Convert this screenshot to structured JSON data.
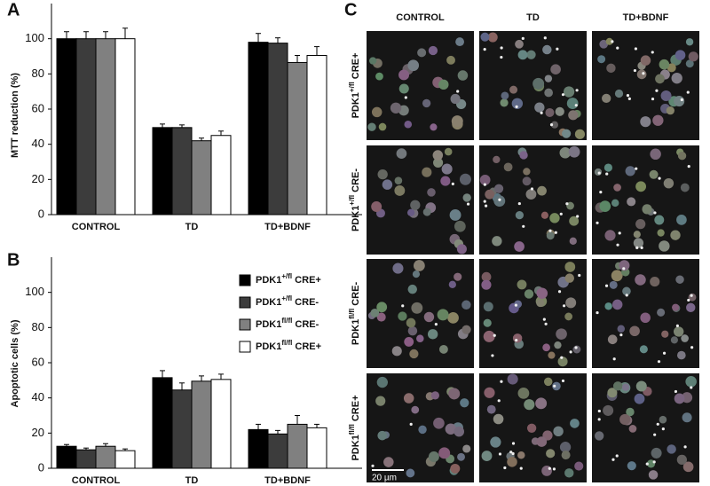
{
  "panel_labels": [
    "A",
    "B",
    "C"
  ],
  "chart_data": [
    {
      "type": "bar",
      "y_label": "MTT reduction (%)",
      "categories": [
        "CONTROL",
        "TD",
        "TD+BDNF"
      ],
      "series": [
        {
          "name": "PDK1+/fl CRE+",
          "color": "#000000",
          "values": [
            100,
            49.5,
            98
          ],
          "errors": [
            4,
            2,
            5
          ]
        },
        {
          "name": "PDK1+/fl CRE-",
          "color": "#3c3c3c",
          "values": [
            100,
            49.5,
            97.5
          ],
          "errors": [
            4,
            1.5,
            3
          ]
        },
        {
          "name": "PDK1fl/fl CRE-",
          "color": "#808080",
          "values": [
            100,
            42,
            86.5
          ],
          "errors": [
            4,
            1.5,
            4
          ]
        },
        {
          "name": "PDK1fl/fl CRE+",
          "color": "#ffffff",
          "values": [
            100,
            45,
            90.5
          ],
          "errors": [
            6,
            2.5,
            5
          ]
        }
      ],
      "ylim": [
        0,
        120
      ],
      "yticks": [
        0,
        20,
        40,
        60,
        80,
        100
      ]
    },
    {
      "type": "bar",
      "y_label": "Apoptotic cells (%)",
      "categories": [
        "CONTROL",
        "TD",
        "TD+BDNF"
      ],
      "series": [
        {
          "name": "PDK1+/fl CRE+",
          "color": "#000000",
          "values": [
            12.5,
            51.5,
            22
          ],
          "errors": [
            1,
            4,
            3
          ]
        },
        {
          "name": "PDK1+/fl CRE-",
          "color": "#3c3c3c",
          "values": [
            10.5,
            44.5,
            19.5
          ],
          "errors": [
            1,
            4,
            2
          ]
        },
        {
          "name": "PDK1fl/fl CRE-",
          "color": "#808080",
          "values": [
            12.5,
            49.5,
            25
          ],
          "errors": [
            1.5,
            3,
            5
          ]
        },
        {
          "name": "PDK1fl/fl CRE+",
          "color": "#ffffff",
          "values": [
            10,
            50.5,
            23
          ],
          "errors": [
            1,
            3,
            2
          ]
        }
      ],
      "ylim": [
        0,
        120
      ],
      "yticks": [
        0,
        20,
        40,
        60,
        80,
        100
      ],
      "legend": "top-right"
    }
  ],
  "image_panel": {
    "column_labels": [
      "CONTROL",
      "TD",
      "TD+BDNF"
    ],
    "row_labels": [
      "PDK1+/fl CRE+",
      "PDK1+/fl CRE-",
      "PDK1fl/fl CRE-",
      "PDK1fl/fl CRE+"
    ],
    "scale_bar": "20 µm"
  }
}
